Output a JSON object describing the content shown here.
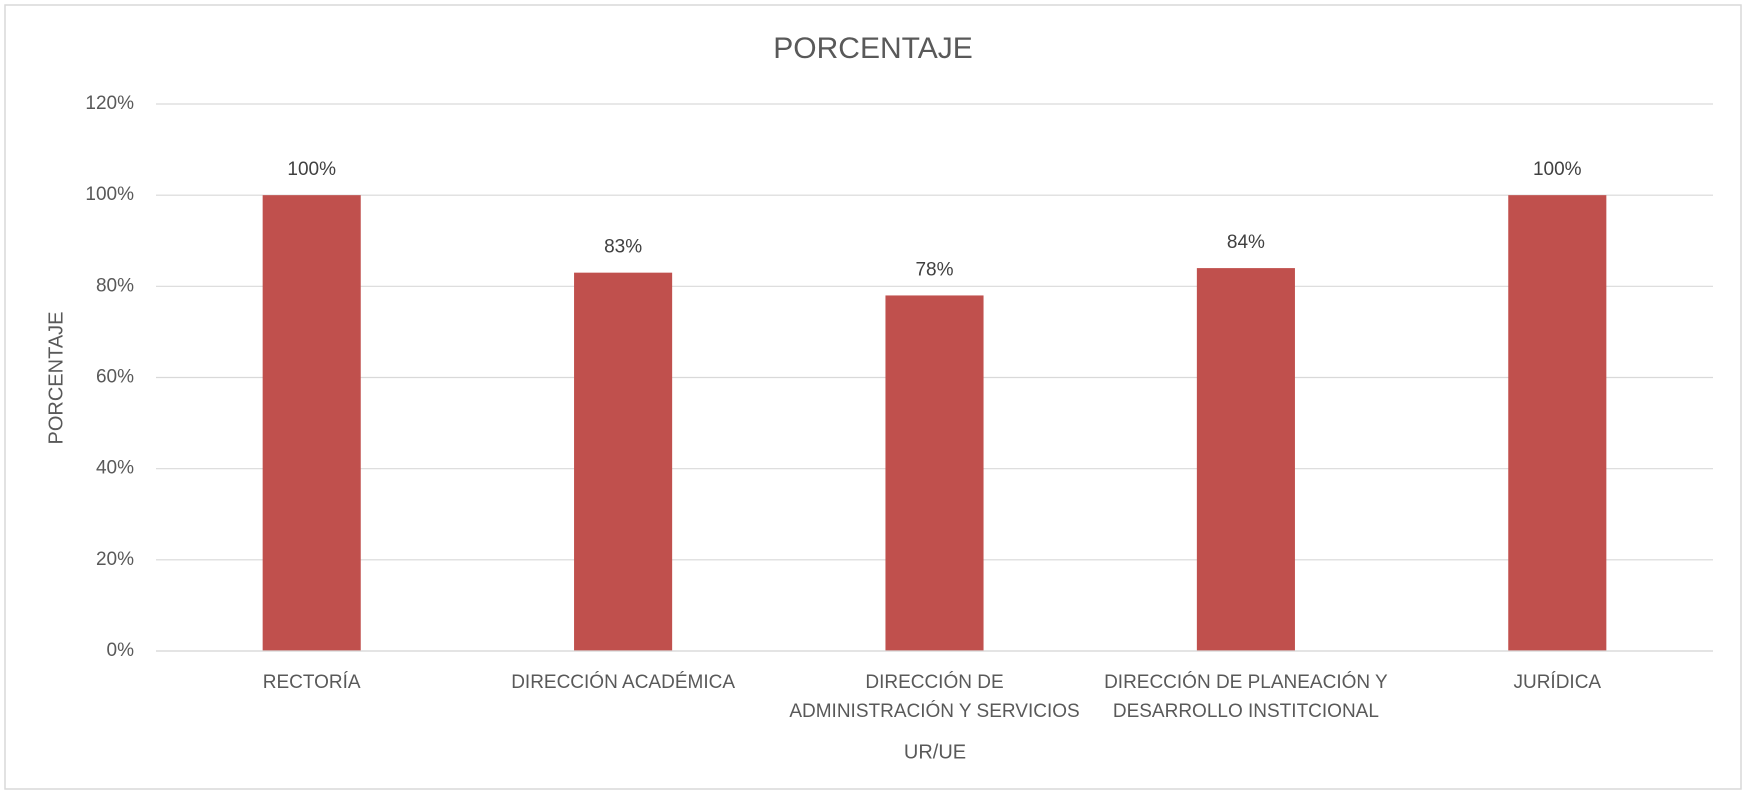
{
  "chart_data": {
    "type": "bar",
    "title": "PORCENTAJE",
    "x_label": "UR/UE",
    "y_label": "PORCENTAJE",
    "categories": [
      "RECTORÍA",
      "DIRECCIÓN ACADÉMICA",
      "DIRECCIÓN DE ADMINISTRACIÓN Y SERVICIOS",
      "DIRECCIÓN DE PLANEACIÓN Y DESARROLLO INSTITCIONAL",
      "JURÍDICA"
    ],
    "values": [
      100,
      83,
      78,
      84,
      100
    ],
    "value_labels": [
      "100%",
      "83%",
      "78%",
      "84%",
      "100%"
    ],
    "color": "#c0504d",
    "ylim": [
      0,
      120
    ],
    "yticks": [
      {
        "value": 0,
        "label": "0%"
      },
      {
        "value": 20,
        "label": "20%"
      },
      {
        "value": 40,
        "label": "40%"
      },
      {
        "value": 60,
        "label": "60%"
      },
      {
        "value": 80,
        "label": "80%"
      },
      {
        "value": 100,
        "label": "100%"
      },
      {
        "value": 120,
        "label": "120%"
      }
    ],
    "grid": true
  }
}
